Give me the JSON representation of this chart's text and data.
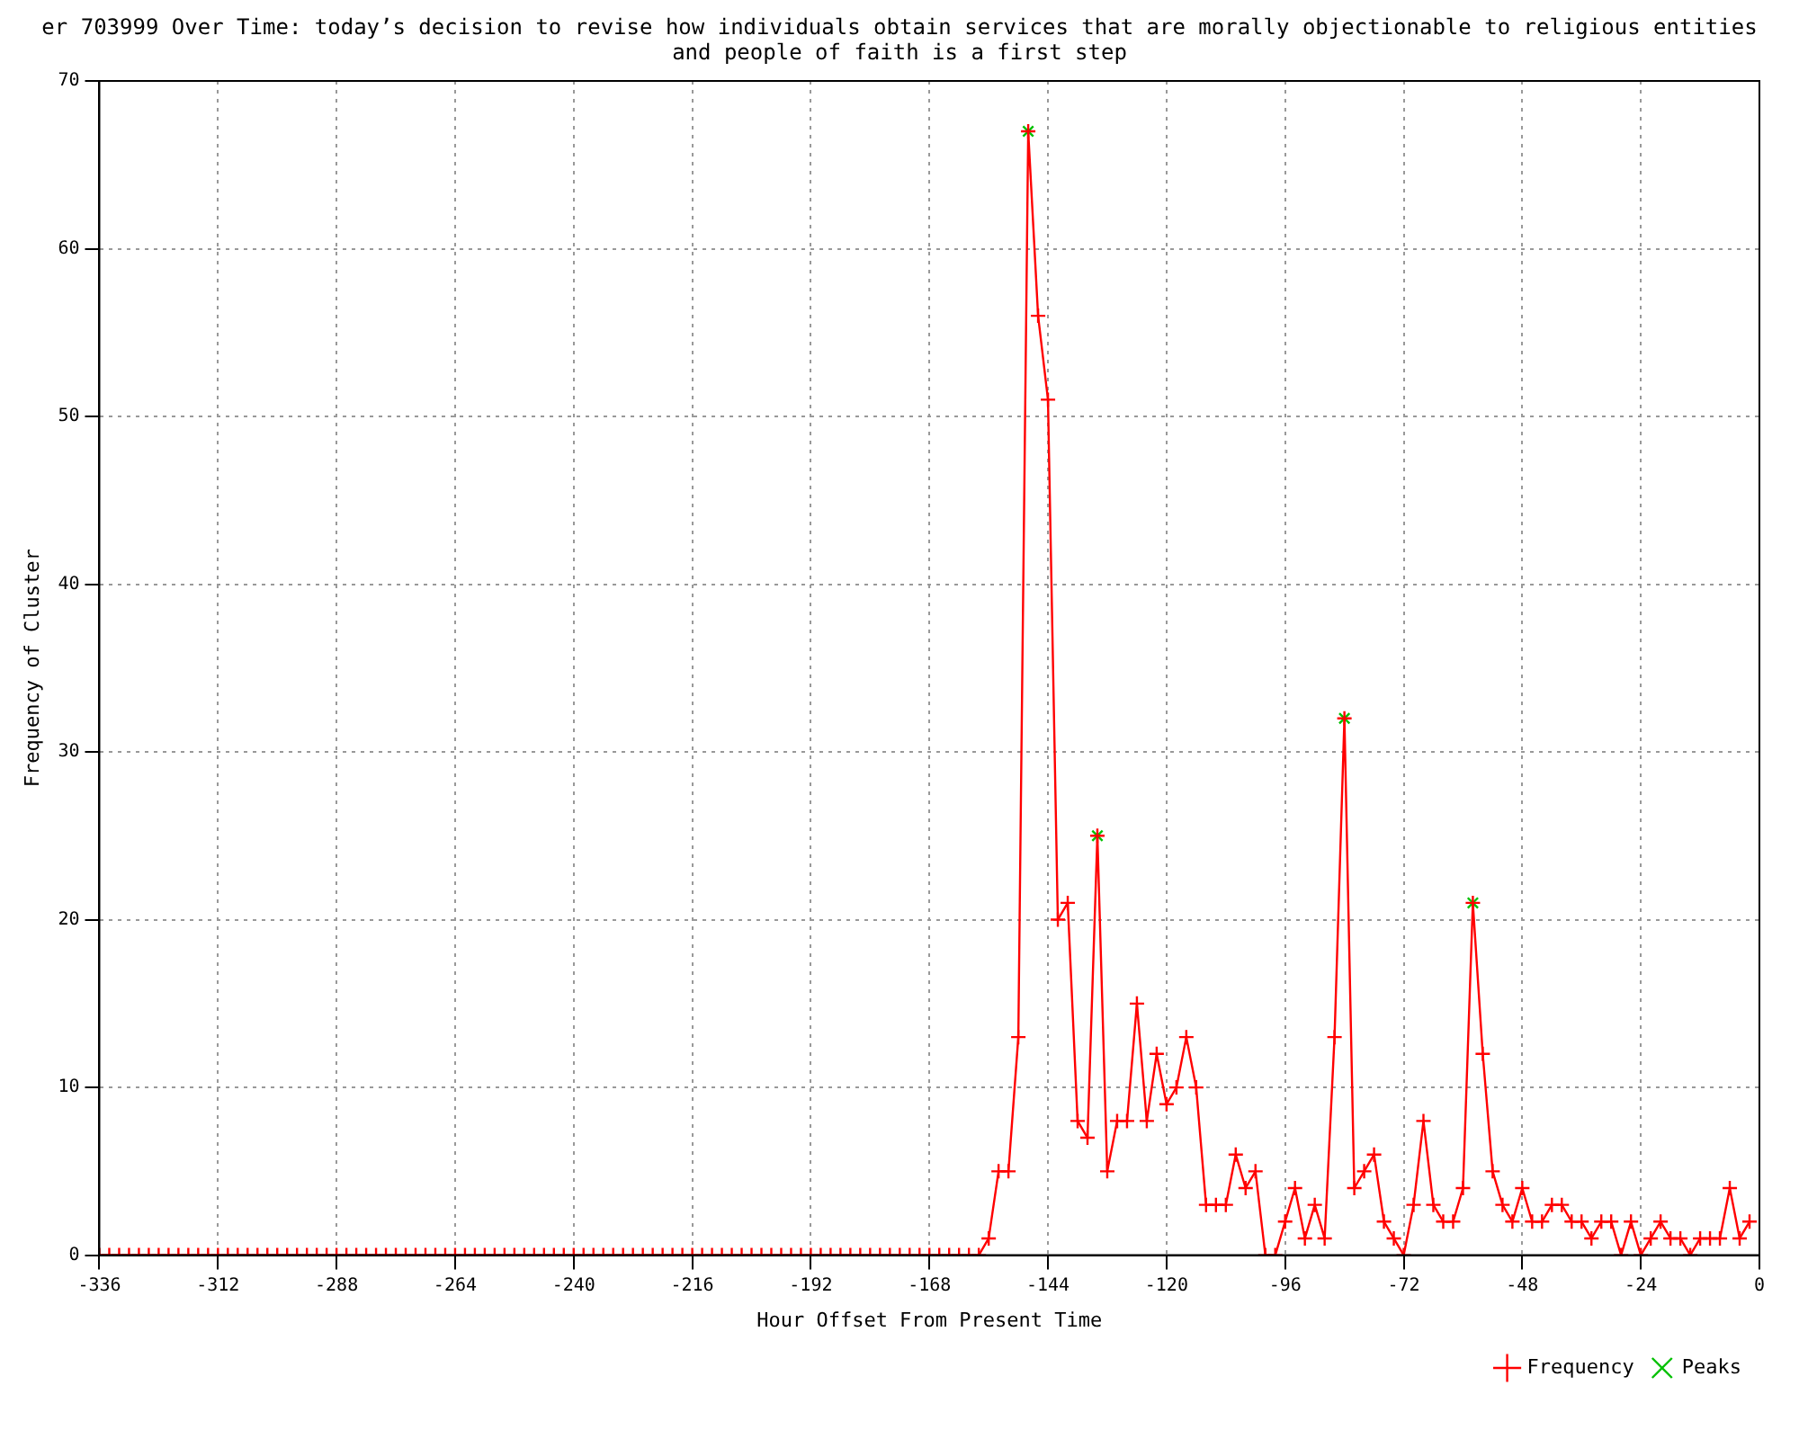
{
  "chart_data": {
    "type": "line",
    "title": "er 703999 Over Time: today’s decision to revise how individuals obtain services that are morally objectionable to religious entities and people of faith is a first step",
    "xlabel": "Hour Offset From Present Time",
    "ylabel": "Frequency of Cluster",
    "xlim": [
      -336,
      0
    ],
    "xticks": [
      -336,
      -312,
      -288,
      -264,
      -240,
      -216,
      -192,
      -168,
      -144,
      -120,
      -96,
      -72,
      -48,
      -24,
      0
    ],
    "ylim": [
      0,
      70
    ],
    "yticks": [
      0,
      10,
      20,
      30,
      40,
      50,
      60,
      70
    ],
    "grid": true,
    "legend": "bottom right",
    "line_style": "solid",
    "series": [
      {
        "name": "Frequency",
        "type": "line",
        "marker": "cross",
        "color": "#ff0000",
        "x": [
          -336,
          -334,
          -332,
          -330,
          -328,
          -326,
          -324,
          -322,
          -320,
          -318,
          -316,
          -314,
          -312,
          -310,
          -308,
          -306,
          -304,
          -302,
          -300,
          -298,
          -296,
          -294,
          -292,
          -290,
          -288,
          -286,
          -284,
          -282,
          -280,
          -278,
          -276,
          -274,
          -272,
          -270,
          -268,
          -266,
          -264,
          -262,
          -260,
          -258,
          -256,
          -254,
          -252,
          -250,
          -248,
          -246,
          -244,
          -242,
          -240,
          -238,
          -236,
          -234,
          -232,
          -230,
          -228,
          -226,
          -224,
          -222,
          -220,
          -218,
          -216,
          -214,
          -212,
          -210,
          -208,
          -206,
          -204,
          -202,
          -200,
          -198,
          -196,
          -194,
          -192,
          -190,
          -188,
          -186,
          -184,
          -182,
          -180,
          -178,
          -176,
          -174,
          -172,
          -170,
          -168,
          -166,
          -164,
          -162,
          -160,
          -158,
          -156,
          -154,
          -152,
          -150,
          -148,
          -146,
          -144,
          -142,
          -140,
          -138,
          -136,
          -134,
          -132,
          -130,
          -128,
          -126,
          -124,
          -122,
          -120,
          -118,
          -116,
          -114,
          -112,
          -110,
          -108,
          -106,
          -104,
          -102,
          -100,
          -98,
          -96,
          -94,
          -92,
          -90,
          -88,
          -86,
          -84,
          -82,
          -80,
          -78,
          -76,
          -74,
          -72,
          -70,
          -68,
          -66,
          -64,
          -62,
          -60,
          -58,
          -56,
          -54,
          -52,
          -50,
          -48,
          -46,
          -44,
          -42,
          -40,
          -38,
          -36,
          -34,
          -32,
          -30,
          -28,
          -26,
          -24,
          -22,
          -20,
          -18,
          -16,
          -14,
          -12,
          -10,
          -8,
          -6,
          -4,
          -2
        ],
        "values": [
          0,
          0,
          0,
          0,
          0,
          0,
          0,
          0,
          0,
          0,
          0,
          0,
          0,
          0,
          0,
          0,
          0,
          0,
          0,
          0,
          0,
          0,
          0,
          0,
          0,
          0,
          0,
          0,
          0,
          0,
          0,
          0,
          0,
          0,
          0,
          0,
          0,
          0,
          0,
          0,
          0,
          0,
          0,
          0,
          0,
          0,
          0,
          0,
          0,
          0,
          0,
          0,
          0,
          0,
          0,
          0,
          0,
          0,
          0,
          0,
          0,
          0,
          0,
          0,
          0,
          0,
          0,
          0,
          0,
          0,
          0,
          0,
          0,
          0,
          0,
          0,
          0,
          0,
          0,
          0,
          0,
          0,
          0,
          0,
          0,
          0,
          0,
          0,
          0,
          0,
          1,
          5,
          5,
          13,
          67,
          56,
          51,
          20,
          21,
          8,
          7,
          25,
          5,
          8,
          8,
          15,
          8,
          12,
          9,
          10,
          13,
          10,
          3,
          3,
          3,
          6,
          4,
          5,
          0,
          0,
          2,
          4,
          1,
          3,
          1,
          13,
          32,
          4,
          5,
          6,
          2,
          1,
          0,
          3,
          8,
          3,
          2,
          2,
          4,
          21,
          12,
          5,
          3,
          2,
          4,
          2,
          2,
          3,
          3,
          2,
          2,
          1,
          2,
          2,
          0,
          2,
          0,
          1,
          2,
          1,
          1,
          0,
          1,
          1,
          1,
          4,
          1,
          2
        ]
      },
      {
        "name": "Peaks",
        "type": "scatter",
        "marker": "cross",
        "color": "#00c000",
        "x": [
          -148,
          -134,
          -84,
          -58
        ],
        "values": [
          67,
          25,
          32,
          21
        ]
      }
    ]
  }
}
